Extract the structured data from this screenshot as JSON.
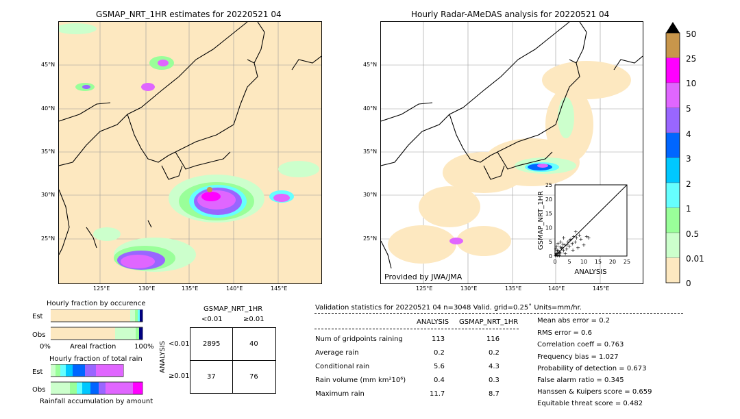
{
  "left_map": {
    "title": "GSMAP_NRT_1HR estimates for 20220521 04",
    "lat_labels": [
      "45°N",
      "40°N",
      "35°N",
      "30°N",
      "25°N"
    ],
    "lon_labels": [
      "125°E",
      "130°E",
      "135°E",
      "140°E",
      "145°E"
    ]
  },
  "right_map": {
    "title": "Hourly Radar-AMeDAS analysis for 20220521 04",
    "lat_labels": [
      "45°N",
      "40°N",
      "35°N",
      "30°N",
      "25°N"
    ],
    "lon_labels": [
      "125°E",
      "130°E",
      "135°E",
      "140°E",
      "145°E"
    ],
    "credit": "Provided by JWA/JMA"
  },
  "colorbar": {
    "labels": [
      "50",
      "25",
      "10",
      "5",
      "4",
      "3",
      "2",
      "1",
      "0.5",
      "0.01",
      "0"
    ],
    "colors": [
      "#c8964b",
      "#ff00ff",
      "#e066ff",
      "#9966ff",
      "#0066ff",
      "#00c8ff",
      "#66ffff",
      "#99ff99",
      "#ccffcc",
      "#fde8c0"
    ]
  },
  "fraction_occurrence": {
    "title": "Hourly fraction by occurence",
    "rows": [
      "Est",
      "Obs"
    ],
    "axis_left": "0%",
    "axis_mid": "Areal fraction",
    "axis_right": "100%"
  },
  "fraction_total": {
    "title": "Hourly fraction of total rain",
    "rows": [
      "Est",
      "Obs"
    ],
    "footer": "Rainfall accumulation by amount"
  },
  "contingency": {
    "title": "GSMAP_NRT_1HR",
    "col_headers": [
      "<0.01",
      "≥0.01"
    ],
    "row_axis": "ANALYSIS",
    "row_headers": [
      "<0.01",
      "≥0.01"
    ],
    "cells": [
      [
        "2895",
        "40"
      ],
      [
        "37",
        "76"
      ]
    ]
  },
  "validation": {
    "header": "Validation statistics for 20220521 04  n=3048 Valid. grid=0.25˚ Units=mm/hr.",
    "col_analysis": "ANALYSIS",
    "col_gsmap": "GSMAP_NRT_1HR",
    "rows": [
      {
        "label": "Num of gridpoints raining",
        "analysis": "113",
        "gsmap": "116"
      },
      {
        "label": "Average rain",
        "analysis": "0.2",
        "gsmap": "0.2"
      },
      {
        "label": "Conditional rain",
        "analysis": "5.6",
        "gsmap": "4.3"
      },
      {
        "label": "Rain volume (mm km²10⁶)",
        "analysis": "0.4",
        "gsmap": "0.3"
      },
      {
        "label": "Maximum rain",
        "analysis": "11.7",
        "gsmap": "8.7"
      }
    ],
    "scores": [
      "Mean abs error =    0.2",
      "RMS error =    0.6",
      "Correlation coeff =  0.763",
      "Frequency bias =  1.027",
      "Probability of detection =  0.673",
      "False alarm ratio =  0.345",
      "Hanssen & Kuipers score =  0.659",
      "Equitable threat score =  0.482"
    ]
  },
  "chart_data": {
    "type": "scatter",
    "xlabel": "ANALYSIS",
    "ylabel": "GSMAP_NRT_1HR",
    "xlim": [
      0,
      25
    ],
    "ylim": [
      0,
      25
    ],
    "xticks": [
      "0",
      "5",
      "10",
      "15",
      "20",
      "25"
    ],
    "yticks": [
      "0",
      "5",
      "10",
      "15",
      "20",
      "25"
    ],
    "points": [
      [
        0.2,
        0.3
      ],
      [
        0.5,
        1.0
      ],
      [
        0.8,
        0.4
      ],
      [
        1.0,
        2.0
      ],
      [
        1.2,
        0.8
      ],
      [
        1.5,
        1.5
      ],
      [
        0.3,
        2.5
      ],
      [
        2.0,
        1.2
      ],
      [
        2.5,
        3.0
      ],
      [
        3.0,
        2.0
      ],
      [
        3.5,
        4.0
      ],
      [
        4.0,
        2.5
      ],
      [
        4.5,
        5.0
      ],
      [
        5.0,
        3.5
      ],
      [
        5.5,
        6.0
      ],
      [
        6.0,
        4.5
      ],
      [
        6.5,
        7.0
      ],
      [
        7.0,
        5.0
      ],
      [
        7.5,
        6.5
      ],
      [
        8.0,
        3.0
      ],
      [
        8.5,
        7.5
      ],
      [
        9.0,
        6.0
      ],
      [
        10.0,
        4.0
      ],
      [
        11.0,
        7.0
      ],
      [
        11.7,
        6.5
      ],
      [
        0.5,
        3.5
      ],
      [
        1.0,
        4.5
      ],
      [
        1.5,
        0.2
      ],
      [
        2.0,
        5.0
      ],
      [
        3.0,
        6.5
      ],
      [
        0.8,
        1.8
      ],
      [
        2.2,
        2.6
      ],
      [
        4.2,
        4.0
      ],
      [
        5.2,
        5.6
      ],
      [
        6.2,
        2.2
      ],
      [
        7.2,
        8.7
      ],
      [
        3.6,
        1.0
      ],
      [
        1.8,
        3.2
      ],
      [
        0.4,
        0.9
      ],
      [
        2.8,
        4.2
      ]
    ]
  }
}
